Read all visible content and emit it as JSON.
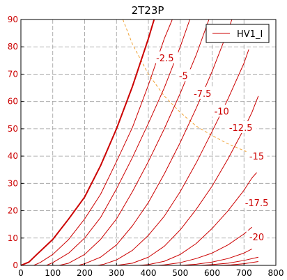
{
  "chart_data": {
    "type": "line",
    "title": "2T23P",
    "xlabel": "",
    "ylabel": "",
    "xlim": [
      0,
      800
    ],
    "ylim": [
      0,
      90
    ],
    "xticks": [
      "0",
      "100",
      "200",
      "300",
      "400",
      "500",
      "600",
      "700",
      "800"
    ],
    "yticks": [
      "0",
      "10",
      "20",
      "30",
      "40",
      "50",
      "60",
      "70",
      "80",
      "90"
    ],
    "grid": true,
    "legend": {
      "position": "top-right",
      "entries": [
        "HV1_I"
      ]
    },
    "colors": {
      "curves": "#cc0000",
      "load_line": "#f0a030",
      "grid": "#9a9a9a"
    },
    "series": [
      {
        "grid_voltage": "0",
        "bold": true,
        "points": [
          [
            0,
            0
          ],
          [
            25,
            1.2
          ],
          [
            50,
            4
          ],
          [
            100,
            9.5
          ],
          [
            150,
            17
          ],
          [
            200,
            25
          ],
          [
            250,
            36.5
          ],
          [
            300,
            50
          ],
          [
            350,
            65.5
          ],
          [
            400,
            83
          ],
          [
            418,
            90
          ]
        ]
      },
      {
        "label": "-2.5",
        "points": [
          [
            40,
            0
          ],
          [
            60,
            1
          ],
          [
            100,
            4
          ],
          [
            150,
            9.5
          ],
          [
            200,
            17
          ],
          [
            250,
            26
          ],
          [
            300,
            38
          ],
          [
            350,
            50.5
          ],
          [
            400,
            66
          ],
          [
            450,
            83
          ],
          [
            475,
            90
          ]
        ]
      },
      {
        "label": "-5",
        "points": [
          [
            80,
            0
          ],
          [
            100,
            1
          ],
          [
            150,
            4.5
          ],
          [
            200,
            10
          ],
          [
            250,
            17.5
          ],
          [
            300,
            28
          ],
          [
            350,
            39.5
          ],
          [
            400,
            52
          ],
          [
            450,
            65
          ],
          [
            500,
            80
          ],
          [
            530,
            90
          ]
        ]
      },
      {
        "label": "-7.5",
        "points": [
          [
            120,
            0
          ],
          [
            150,
            0.8
          ],
          [
            200,
            4
          ],
          [
            250,
            9.5
          ],
          [
            300,
            17
          ],
          [
            350,
            27
          ],
          [
            400,
            38
          ],
          [
            450,
            50
          ],
          [
            500,
            63
          ],
          [
            550,
            77
          ],
          [
            590,
            90
          ]
        ]
      },
      {
        "label": "-10",
        "points": [
          [
            180,
            0
          ],
          [
            200,
            0.6
          ],
          [
            250,
            3
          ],
          [
            300,
            7.5
          ],
          [
            350,
            14.5
          ],
          [
            400,
            23
          ],
          [
            450,
            33.5
          ],
          [
            500,
            45
          ],
          [
            550,
            57.5
          ],
          [
            600,
            71
          ],
          [
            650,
            86
          ],
          [
            662,
            90
          ]
        ]
      },
      {
        "label": "-12.5",
        "points": [
          [
            240,
            0
          ],
          [
            260,
            0.4
          ],
          [
            300,
            2
          ],
          [
            350,
            5.5
          ],
          [
            400,
            11
          ],
          [
            450,
            18
          ],
          [
            500,
            27
          ],
          [
            550,
            37.5
          ],
          [
            600,
            49
          ],
          [
            650,
            61
          ],
          [
            700,
            74
          ],
          [
            715,
            79
          ]
        ]
      },
      {
        "label": "-15",
        "points": [
          [
            300,
            0
          ],
          [
            350,
            0.8
          ],
          [
            400,
            3
          ],
          [
            450,
            7
          ],
          [
            500,
            13
          ],
          [
            550,
            20.5
          ],
          [
            600,
            29
          ],
          [
            650,
            39
          ],
          [
            700,
            50
          ],
          [
            725,
            56
          ],
          [
            745,
            62
          ]
        ]
      },
      {
        "label": "-17.5",
        "points": [
          [
            370,
            0
          ],
          [
            400,
            0.3
          ],
          [
            450,
            1.5
          ],
          [
            500,
            4
          ],
          [
            550,
            8
          ],
          [
            600,
            13.5
          ],
          [
            650,
            20
          ],
          [
            700,
            27.5
          ],
          [
            725,
            32
          ],
          [
            740,
            34
          ]
        ]
      },
      {
        "label": "-20",
        "points": [
          [
            430,
            0
          ],
          [
            450,
            0.2
          ],
          [
            500,
            1
          ],
          [
            550,
            2.5
          ],
          [
            600,
            4.5
          ],
          [
            650,
            7.5
          ],
          [
            700,
            11.5
          ],
          [
            725,
            14
          ]
        ]
      },
      {
        "label": "",
        "points": [
          [
            500,
            0
          ],
          [
            550,
            0.4
          ],
          [
            600,
            1.2
          ],
          [
            650,
            2.5
          ],
          [
            700,
            4.5
          ],
          [
            725,
            6
          ]
        ]
      },
      {
        "label": "",
        "points": [
          [
            560,
            0
          ],
          [
            600,
            0.3
          ],
          [
            650,
            0.8
          ],
          [
            700,
            1.8
          ],
          [
            745,
            3
          ]
        ]
      },
      {
        "label": "",
        "points": [
          [
            620,
            0
          ],
          [
            660,
            0.2
          ],
          [
            700,
            0.6
          ],
          [
            745,
            1.4
          ]
        ]
      }
    ],
    "load_line": {
      "points": [
        [
          320,
          90
        ],
        [
          350,
          81
        ],
        [
          400,
          70
        ],
        [
          450,
          62
        ],
        [
          500,
          56
        ],
        [
          550,
          51
        ],
        [
          600,
          47.5
        ],
        [
          650,
          44.5
        ],
        [
          700,
          42
        ],
        [
          745,
          40
        ]
      ]
    },
    "curve_labels": [
      {
        "text": "-2.5",
        "x": 452,
        "y": 76
      },
      {
        "text": "-5",
        "x": 510,
        "y": 69.5
      },
      {
        "text": "-7.5",
        "x": 570,
        "y": 63
      },
      {
        "text": "-10",
        "x": 630,
        "y": 56.5
      },
      {
        "text": "-12.5",
        "x": 690,
        "y": 50.5
      },
      {
        "text": "-15",
        "x": 740,
        "y": 40
      },
      {
        "text": "-17.5",
        "x": 740,
        "y": 23
      },
      {
        "text": "-20",
        "x": 740,
        "y": 10.5
      }
    ]
  }
}
